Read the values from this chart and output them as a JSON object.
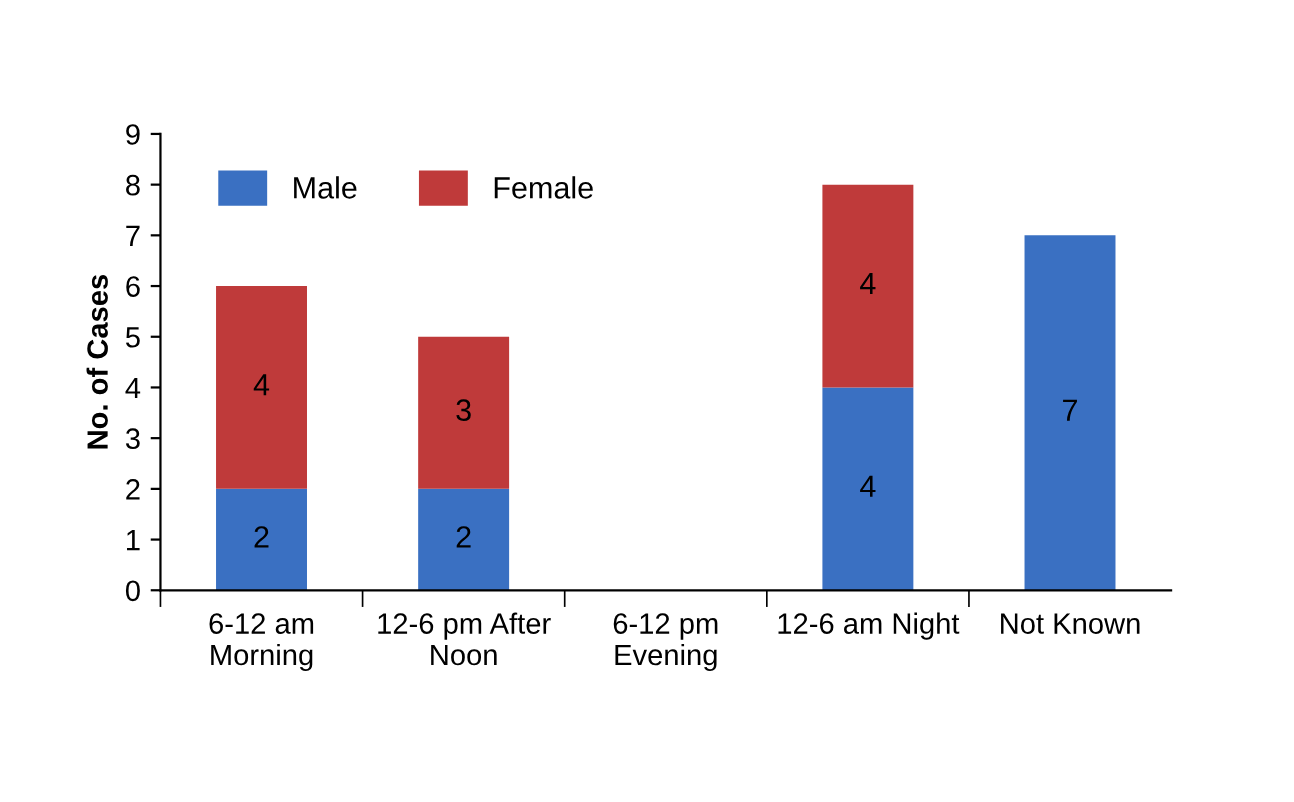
{
  "chart_data": {
    "type": "bar",
    "stacked": true,
    "ylabel": "No. of Cases",
    "categories": [
      "6-12 am\nMorning",
      "12-6 pm After\nNoon",
      "6-12 pm\nEvening",
      "12-6 am Night",
      "Not Known"
    ],
    "series": [
      {
        "name": "Male",
        "color": "#3a70c2",
        "values": [
          2,
          2,
          0,
          4,
          7
        ],
        "value_labels": [
          "2",
          "2",
          null,
          "4",
          "7"
        ]
      },
      {
        "name": "Female",
        "color": "#bf3a3a",
        "values": [
          4,
          3,
          0,
          4,
          0
        ],
        "value_labels": [
          "4",
          "3",
          null,
          "4",
          null
        ]
      }
    ],
    "ylim": [
      0,
      9
    ],
    "yticks": [
      0,
      1,
      2,
      3,
      4,
      5,
      6,
      7,
      8,
      9
    ],
    "grid": false,
    "legend": "top left"
  }
}
